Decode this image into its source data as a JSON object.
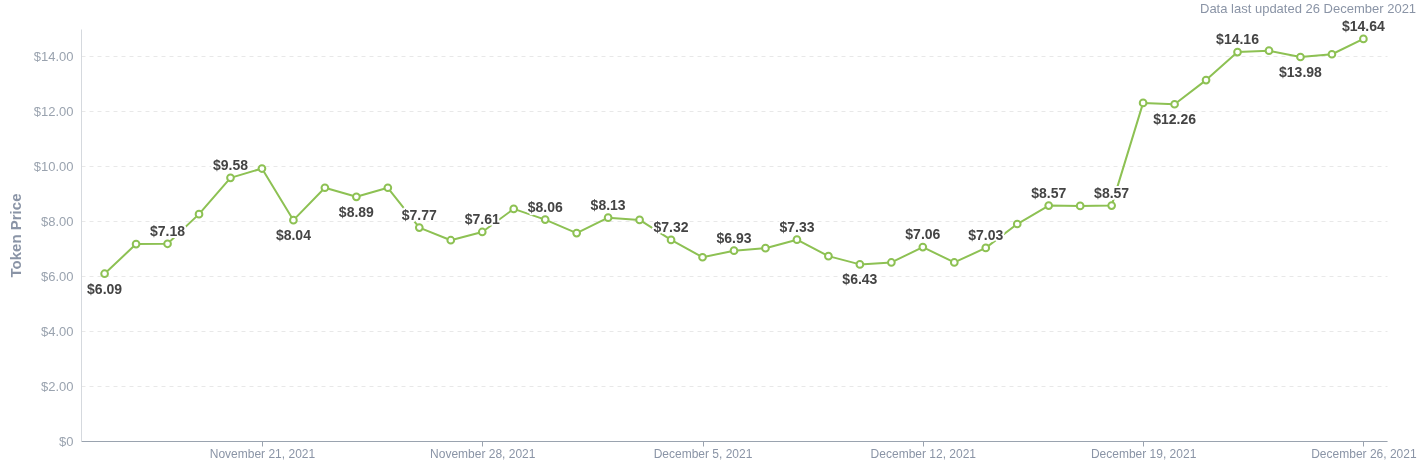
{
  "chart_data": {
    "type": "line",
    "ylabel": "Token Price",
    "annotations": [
      "Data last updated 26 December 2021"
    ],
    "x": [
      "2021-11-16",
      "2021-11-17",
      "2021-11-18",
      "2021-11-19",
      "2021-11-20",
      "2021-11-21",
      "2021-11-22",
      "2021-11-23",
      "2021-11-24",
      "2021-11-25",
      "2021-11-26",
      "2021-11-27",
      "2021-11-28",
      "2021-11-29",
      "2021-11-30",
      "2021-12-01",
      "2021-12-02",
      "2021-12-03",
      "2021-12-04",
      "2021-12-05",
      "2021-12-06",
      "2021-12-07",
      "2021-12-08",
      "2021-12-09",
      "2021-12-10",
      "2021-12-11",
      "2021-12-12",
      "2021-12-13",
      "2021-12-14",
      "2021-12-15",
      "2021-12-16",
      "2021-12-17",
      "2021-12-18",
      "2021-12-19",
      "2021-12-20",
      "2021-12-21",
      "2021-12-22",
      "2021-12-23",
      "2021-12-24",
      "2021-12-25",
      "2021-12-26"
    ],
    "series": [
      {
        "color": "#8dc153",
        "values": [
          6.09,
          7.17,
          7.18,
          8.26,
          9.58,
          9.92,
          8.04,
          9.22,
          8.89,
          9.22,
          7.77,
          7.31,
          7.61,
          8.45,
          8.06,
          7.57,
          8.13,
          8.05,
          7.32,
          6.69,
          6.93,
          7.02,
          7.33,
          6.73,
          6.43,
          6.5,
          7.06,
          6.5,
          7.03,
          7.9,
          8.57,
          8.56,
          8.57,
          12.31,
          12.26,
          13.14,
          14.16,
          14.21,
          13.98,
          14.08,
          14.64
        ],
        "value_labels": [
          "$6.09",
          null,
          "$7.18",
          null,
          "$9.58",
          null,
          "$8.04",
          null,
          "$8.89",
          null,
          "$7.77",
          null,
          "$7.61",
          null,
          "$8.06",
          null,
          "$8.13",
          null,
          "$7.32",
          null,
          "$6.93",
          null,
          "$7.33",
          null,
          "$6.43",
          null,
          "$7.06",
          null,
          "$7.03",
          null,
          "$8.57",
          null,
          "$8.57",
          null,
          "$12.26",
          null,
          "$14.16",
          null,
          "$13.98",
          null,
          "$14.64"
        ]
      }
    ],
    "xlim": [
      "2021-11-15T06:00",
      "2021-12-26T18:00"
    ],
    "xticks": [
      {
        "value": "2021-11-21",
        "label": "November 21, 2021"
      },
      {
        "value": "2021-11-28",
        "label": "November 28, 2021"
      },
      {
        "value": "2021-12-05",
        "label": "December 5, 2021"
      },
      {
        "value": "2021-12-12",
        "label": "December 12, 2021"
      },
      {
        "value": "2021-12-19",
        "label": "December 19, 2021"
      },
      {
        "value": "2021-12-26",
        "label": "December 26, 2021"
      }
    ],
    "ylim": [
      0,
      15
    ],
    "yticks": [
      {
        "value": 0,
        "label": "$0"
      },
      {
        "value": 2,
        "label": "$2.00"
      },
      {
        "value": 4,
        "label": "$4.00"
      },
      {
        "value": 6,
        "label": "$6.00"
      },
      {
        "value": 8,
        "label": "$8.00"
      },
      {
        "value": 10,
        "label": "$10.00"
      },
      {
        "value": 12,
        "label": "$12.00"
      },
      {
        "value": 14,
        "label": "$14.00"
      }
    ],
    "grid": "y",
    "marker": "circle",
    "line_style": "solid"
  }
}
